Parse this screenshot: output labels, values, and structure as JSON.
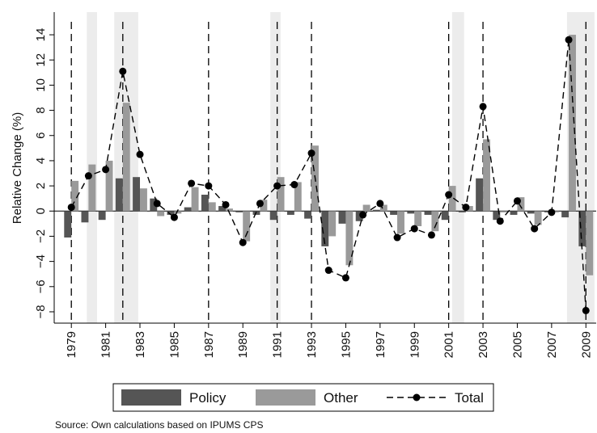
{
  "chart_data": {
    "type": "bar",
    "y_label": "Relative Change (%)",
    "source": "Source: Own calculations based on IPUMS CPS",
    "x": [
      1979,
      1980,
      1981,
      1982,
      1983,
      1984,
      1985,
      1986,
      1987,
      1988,
      1989,
      1990,
      1991,
      1992,
      1993,
      1994,
      1995,
      1996,
      1997,
      1998,
      1999,
      2000,
      2001,
      2002,
      2003,
      2004,
      2005,
      2006,
      2007,
      2008,
      2009
    ],
    "series": [
      {
        "name": "Policy",
        "type": "bar",
        "color": "#555555",
        "values": [
          -2.1,
          -0.9,
          -0.7,
          2.6,
          2.7,
          1.0,
          -0.3,
          0.3,
          1.3,
          0.4,
          -0.1,
          -0.3,
          -0.7,
          -0.3,
          -0.6,
          -2.8,
          -1.0,
          -0.8,
          0.1,
          -0.3,
          -0.2,
          -0.3,
          -0.7,
          -0.1,
          2.6,
          -0.7,
          -0.3,
          -0.2,
          -0.1,
          -0.5,
          -2.8
        ]
      },
      {
        "name": "Other",
        "type": "bar",
        "color": "#9a9a9a",
        "values": [
          2.4,
          3.7,
          4.0,
          8.6,
          1.8,
          -0.4,
          -0.2,
          1.9,
          0.7,
          0.2,
          -2.4,
          0.9,
          2.7,
          2.3,
          5.2,
          -2.0,
          -4.3,
          0.5,
          0.5,
          -1.8,
          -1.2,
          -1.6,
          2.0,
          0.4,
          5.7,
          -0.1,
          1.1,
          -1.1,
          -0.1,
          14.0,
          -5.1
        ]
      },
      {
        "name": "Total",
        "type": "line",
        "color": "#000000",
        "values": [
          0.3,
          2.8,
          3.3,
          11.1,
          4.5,
          0.6,
          -0.5,
          2.2,
          2.0,
          0.5,
          -2.5,
          0.6,
          2.0,
          2.1,
          4.6,
          -4.7,
          -5.3,
          -0.3,
          0.6,
          -2.1,
          -1.4,
          -1.9,
          1.3,
          0.3,
          8.3,
          -0.8,
          0.8,
          -1.4,
          -0.1,
          13.6,
          -7.9
        ]
      }
    ],
    "xlim": [
      1978,
      2009.6
    ],
    "xticks": [
      1979,
      1981,
      1983,
      1985,
      1987,
      1989,
      1991,
      1993,
      1995,
      1997,
      1999,
      2001,
      2003,
      2005,
      2007,
      2009
    ],
    "ylim": [
      -8.9,
      15.8
    ],
    "yticks": [
      {
        "value": -8,
        "label": "−8"
      },
      {
        "value": -6,
        "label": "−6"
      },
      {
        "value": -4,
        "label": "−4"
      },
      {
        "value": -2,
        "label": "−2"
      },
      0,
      2,
      4,
      6,
      8,
      10,
      12,
      14
    ],
    "shading": [
      [
        1979.9,
        1980.5
      ],
      [
        1981.5,
        1982.9
      ],
      [
        1990.6,
        1991.2
      ],
      [
        2001.2,
        2001.9
      ],
      [
        2007.9,
        2009.5
      ]
    ],
    "vlines": [
      1979,
      1982,
      1987,
      1991,
      1993,
      2001,
      2003,
      2009
    ],
    "grid": false
  }
}
